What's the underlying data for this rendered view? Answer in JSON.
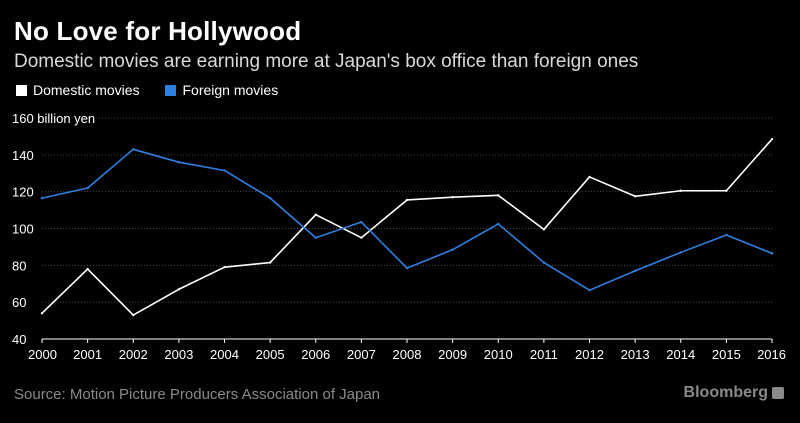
{
  "header": {
    "title": "No Love for Hollywood",
    "subtitle": "Domestic movies are earning more at Japan's box office than foreign ones"
  },
  "footer": {
    "source": "Source: Motion Picture Producers Association of Japan",
    "brand": "Bloomberg"
  },
  "chart_data": {
    "type": "line",
    "title": "No Love for Hollywood",
    "subtitle": "Domestic movies are earning more at Japan's box office than foreign ones",
    "ylabel": "billion yen",
    "xlabel": "",
    "categories": [
      "2000",
      "2001",
      "2002",
      "2003",
      "2004",
      "2005",
      "2006",
      "2007",
      "2008",
      "2009",
      "2010",
      "2011",
      "2012",
      "2013",
      "2014",
      "2015",
      "2016"
    ],
    "ylim": [
      40,
      160
    ],
    "yticks": [
      40,
      60,
      80,
      100,
      120,
      140,
      160
    ],
    "grid": true,
    "legend_position": "top-left",
    "series": [
      {
        "name": "Domestic movies",
        "color": "#ffffff",
        "values": [
          54,
          78,
          53,
          67,
          79,
          81.5,
          107.5,
          95,
          115.5,
          117,
          118,
          99.5,
          128,
          117.5,
          120.5,
          120.5,
          148.5
        ]
      },
      {
        "name": "Foreign movies",
        "color": "#2f7fe0",
        "values": [
          116.5,
          122,
          143,
          136,
          131.5,
          116.5,
          95,
          103.5,
          78.5,
          88.5,
          102.5,
          81.5,
          66.5,
          77,
          87,
          96.5,
          86.5
        ]
      }
    ]
  }
}
